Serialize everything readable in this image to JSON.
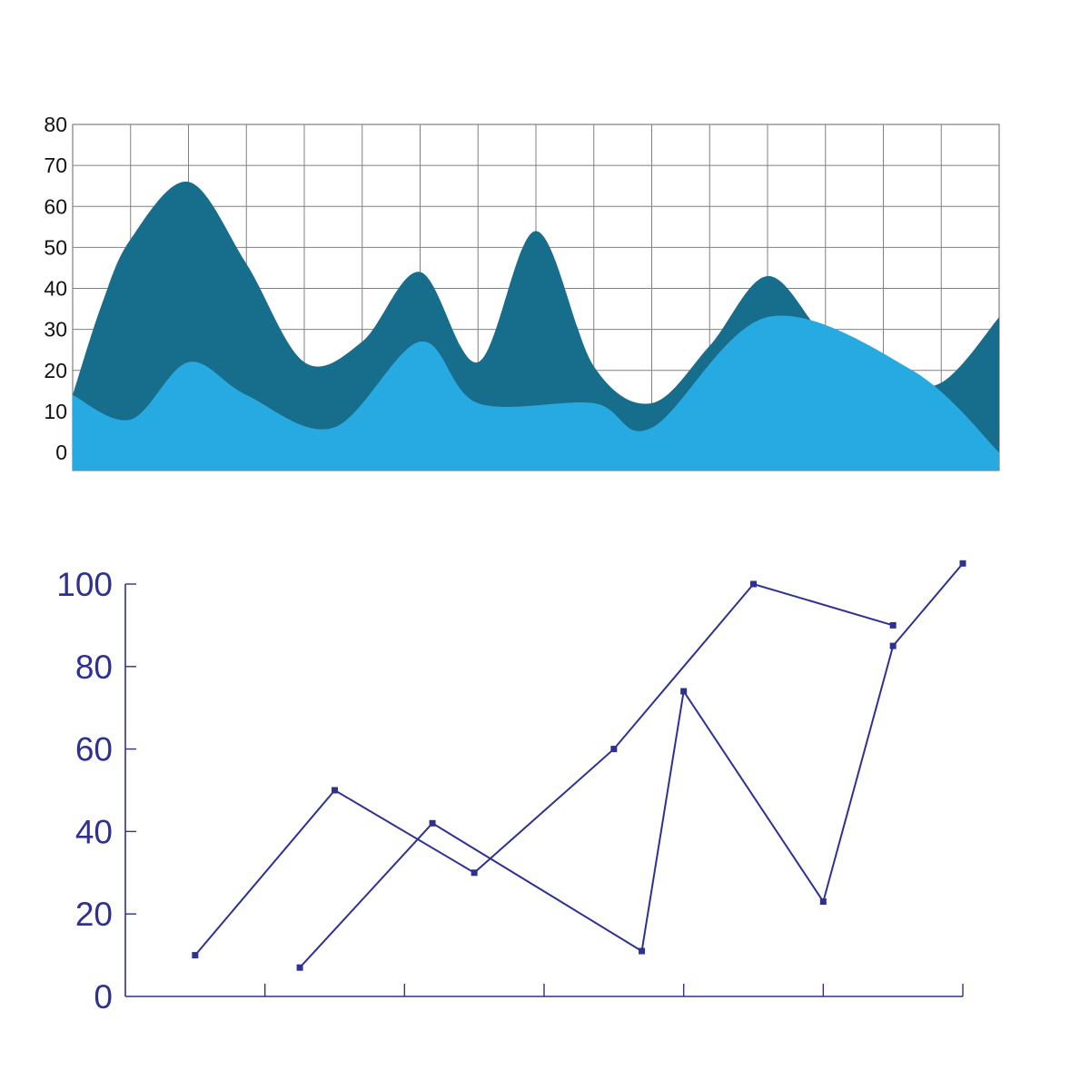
{
  "chart_data": [
    {
      "type": "area",
      "ylim": [
        0,
        80
      ],
      "yticks": [
        "80",
        "70",
        "60",
        "50",
        "40",
        "30",
        "20",
        "10",
        "0"
      ],
      "grid": true,
      "xlim": [
        0,
        16
      ],
      "series": [
        {
          "color": "#176e8c",
          "points": [
            [
              0,
              14
            ],
            [
              0.5,
              36
            ],
            [
              1,
              52
            ],
            [
              2,
              66
            ],
            [
              3,
              46
            ],
            [
              4,
              22
            ],
            [
              5,
              27
            ],
            [
              6,
              44
            ],
            [
              7,
              22
            ],
            [
              8,
              54
            ],
            [
              9,
              21
            ],
            [
              10,
              12
            ],
            [
              11,
              26
            ],
            [
              12,
              43
            ],
            [
              13,
              28
            ],
            [
              14,
              18
            ],
            [
              15,
              17
            ],
            [
              16,
              33
            ]
          ]
        },
        {
          "color": "#27a9e1",
          "points": [
            [
              0,
              14
            ],
            [
              1,
              8
            ],
            [
              2,
              22
            ],
            [
              3,
              14
            ],
            [
              4.5,
              6
            ],
            [
              6,
              27
            ],
            [
              7,
              12
            ],
            [
              9,
              12
            ],
            [
              10,
              6
            ],
            [
              12,
              33
            ],
            [
              14.5,
              20
            ],
            [
              16,
              0
            ]
          ]
        }
      ]
    },
    {
      "type": "line",
      "ylim": [
        0,
        100
      ],
      "xlim": [
        0,
        6
      ],
      "yticks": [
        "100",
        "80",
        "60",
        "40",
        "20",
        "0"
      ],
      "color": "#2e3191",
      "series": [
        {
          "points": [
            [
              0.5,
              10
            ],
            [
              1.5,
              50
            ],
            [
              2.5,
              30
            ],
            [
              3.5,
              60
            ],
            [
              4.5,
              100
            ],
            [
              5.5,
              90
            ]
          ]
        },
        {
          "points": [
            [
              1.25,
              7
            ],
            [
              2.2,
              42
            ],
            [
              3.7,
              11
            ],
            [
              4,
              74
            ],
            [
              5,
              23
            ],
            [
              5.5,
              85
            ],
            [
              6,
              105
            ]
          ]
        }
      ]
    }
  ]
}
